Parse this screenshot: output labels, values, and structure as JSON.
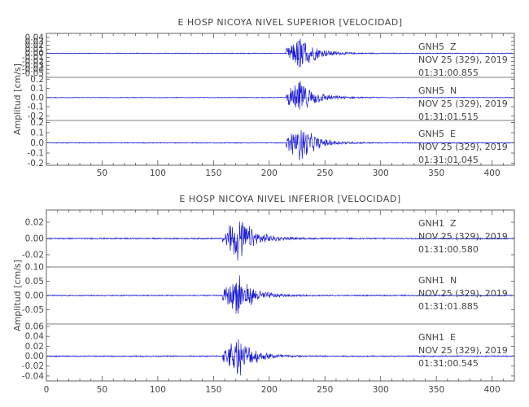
{
  "figure": {
    "trace_color": "#1f1fd6",
    "axis_color": "#555555"
  },
  "chart_data": [
    {
      "type": "line",
      "title": "E HOSP NICOYA NIVEL SUPERIOR [VELOCIDAD]",
      "ylabel": "Amplitud [cm/s]",
      "xlim": [
        0,
        420
      ],
      "x_ticks": [
        50,
        100,
        150,
        200,
        250,
        300,
        350,
        400
      ],
      "grid": false,
      "series": [
        {
          "name": "GNH5 Z",
          "station": "GNH5",
          "component": "Z",
          "date": "NOV 25 (329), 2019",
          "time": "01:31:00.855",
          "ylim": [
            -0.06,
            0.05
          ],
          "y_ticks": [
            0.04,
            0.03,
            0.02,
            0.01,
            0.0,
            -0.01,
            -0.02,
            -0.03,
            -0.04,
            -0.05
          ],
          "tick_labels": [
            "0.04",
            "0.03",
            "0.02",
            "0.01",
            "0.00",
            "-0.01",
            "-0.02",
            "-0.03",
            "-0.04",
            "-0.05"
          ],
          "onset_x": 215,
          "peak_x": 228,
          "peak_amplitude": 0.048,
          "noise_amplitude": 0.001
        },
        {
          "name": "GNH5 N",
          "station": "GNH5",
          "component": "N",
          "date": "NOV 25 (329), 2019",
          "time": "01:31:01.515",
          "ylim": [
            -0.25,
            0.22
          ],
          "y_ticks": [
            0.2,
            0.1,
            0.0,
            -0.1,
            -0.2
          ],
          "tick_labels": [
            "0.2",
            "0.1",
            "0.0",
            "-0.1",
            "-0.2"
          ],
          "onset_x": 215,
          "peak_x": 228,
          "peak_amplitude": 0.2,
          "noise_amplitude": 0.004
        },
        {
          "name": "GNH5 E",
          "station": "GNH5",
          "component": "E",
          "date": "NOV 25 (329), 2019",
          "time": "01:31:01.045",
          "ylim": [
            -0.22,
            0.22
          ],
          "y_ticks": [
            0.2,
            0.1,
            0.0,
            -0.1,
            -0.2
          ],
          "tick_labels": [
            "0.2",
            "0.1",
            "0.0",
            "-0.1",
            "-0.2"
          ],
          "onset_x": 215,
          "peak_x": 228,
          "peak_amplitude": 0.2,
          "noise_amplitude": 0.004
        }
      ]
    },
    {
      "type": "line",
      "title": "E HOSP NICOYA NIVEL INFERIOR [VELOCIDAD]",
      "ylabel": "Amplitud [cm/s]",
      "xlim": [
        0,
        420
      ],
      "x_ticks": [
        0,
        50,
        100,
        150,
        200,
        250,
        300,
        350,
        400
      ],
      "grid": false,
      "series": [
        {
          "name": "GNH1 Z",
          "station": "GNH1",
          "component": "Z",
          "date": "NOV 25 (329), 2019",
          "time": "01:31:00.580",
          "ylim": [
            -0.035,
            0.035
          ],
          "y_ticks": [
            0.02,
            0.0,
            -0.02
          ],
          "tick_labels": [
            "0.02",
            "0.00",
            "-0.02"
          ],
          "onset_x": 158,
          "peak_x": 172,
          "peak_amplitude": 0.032,
          "noise_amplitude": 0.0008
        },
        {
          "name": "GNH1 N",
          "station": "GNH1",
          "component": "N",
          "date": "NOV 25 (329), 2019",
          "time": "01:31:01.885",
          "ylim": [
            -0.1,
            0.1
          ],
          "y_ticks": [
            0.1,
            0.05,
            0.0,
            -0.05
          ],
          "tick_labels": [
            "0.10",
            "0.05",
            "0.00",
            "-0.05"
          ],
          "onset_x": 158,
          "peak_x": 172,
          "peak_amplitude": 0.075,
          "noise_amplitude": 0.002
        },
        {
          "name": "GNH1 E",
          "station": "GNH1",
          "component": "E",
          "date": "NOV 25 (329), 2019",
          "time": "01:31:00.545",
          "ylim": [
            -0.05,
            0.065
          ],
          "y_ticks": [
            0.06,
            0.04,
            0.02,
            0.0,
            -0.02,
            -0.04
          ],
          "tick_labels": [
            "0.06",
            "0.04",
            "0.02",
            "0.00",
            "-0.02",
            "-0.04"
          ],
          "onset_x": 158,
          "peak_x": 172,
          "peak_amplitude": 0.045,
          "noise_amplitude": 0.0012
        }
      ]
    }
  ]
}
